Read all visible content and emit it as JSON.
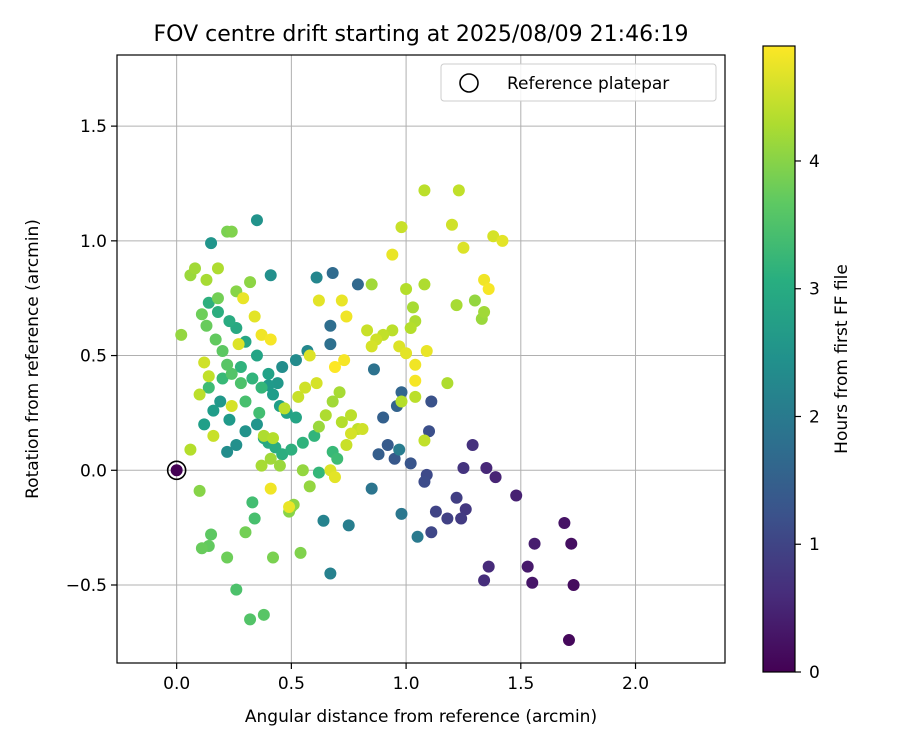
{
  "chart_data": {
    "type": "scatter",
    "title": "FOV centre drift starting at 2025/08/09 21:46:19",
    "xlabel": "Angular distance from reference (arcmin)",
    "ylabel": "Rotation from reference (arcmin)",
    "xlim": [
      -0.26,
      2.39
    ],
    "ylim": [
      -0.84,
      1.81
    ],
    "xticks": [
      0.0,
      0.5,
      1.0,
      1.5,
      2.0
    ],
    "xtick_labels": [
      "0.0",
      "0.5",
      "1.0",
      "1.5",
      "2.0"
    ],
    "yticks": [
      -0.5,
      0.0,
      0.5,
      1.0,
      1.5
    ],
    "ytick_labels": [
      "−0.5",
      "0.0",
      "0.5",
      "1.0",
      "1.5"
    ],
    "grid": true,
    "legend": {
      "location": "upper right",
      "entries": [
        "Reference platepar"
      ]
    },
    "reference_point": {
      "name": "Reference platepar",
      "x": 0.0,
      "y": 0.0
    },
    "colorbar": {
      "label": "Hours from first FF file",
      "colormap": "viridis",
      "range": [
        0,
        4.9
      ],
      "ticks": [
        0,
        1,
        2,
        3,
        4
      ],
      "tick_labels": [
        "0",
        "1",
        "2",
        "3",
        "4"
      ]
    },
    "series": [
      {
        "points": [
          [
            1.71,
            -0.74,
            0.1
          ],
          [
            1.73,
            -0.5,
            0.15
          ],
          [
            1.72,
            -0.32,
            0.2
          ],
          [
            1.69,
            -0.23,
            0.25
          ],
          [
            1.55,
            -0.49,
            0.3
          ],
          [
            1.53,
            -0.42,
            0.35
          ],
          [
            1.56,
            -0.32,
            0.4
          ],
          [
            1.48,
            -0.11,
            0.45
          ],
          [
            1.39,
            -0.03,
            0.5
          ],
          [
            1.35,
            0.01,
            0.55
          ],
          [
            1.36,
            -0.42,
            0.6
          ],
          [
            1.34,
            -0.48,
            0.65
          ],
          [
            1.29,
            0.11,
            0.7
          ],
          [
            1.25,
            0.01,
            0.75
          ],
          [
            1.26,
            -0.17,
            0.8
          ],
          [
            1.24,
            -0.21,
            0.85
          ],
          [
            1.22,
            -0.12,
            0.9
          ],
          [
            1.18,
            -0.21,
            0.95
          ],
          [
            1.13,
            -0.18,
            1.0
          ],
          [
            1.11,
            -0.27,
            1.05
          ],
          [
            1.09,
            -0.02,
            1.1
          ],
          [
            1.08,
            -0.05,
            1.15
          ],
          [
            1.1,
            0.17,
            1.2
          ],
          [
            1.11,
            0.3,
            1.25
          ],
          [
            1.02,
            0.03,
            1.3
          ],
          [
            0.95,
            0.05,
            1.35
          ],
          [
            0.92,
            0.11,
            1.4
          ],
          [
            0.88,
            0.07,
            1.45
          ],
          [
            0.9,
            0.23,
            1.5
          ],
          [
            0.96,
            0.28,
            1.55
          ],
          [
            0.98,
            0.34,
            1.6
          ],
          [
            0.79,
            0.81,
            1.65
          ],
          [
            0.68,
            0.86,
            1.7
          ],
          [
            0.67,
            0.63,
            1.75
          ],
          [
            0.67,
            0.55,
            1.8
          ],
          [
            0.86,
            0.44,
            1.85
          ],
          [
            0.85,
            -0.08,
            1.9
          ],
          [
            0.98,
            -0.19,
            1.95
          ],
          [
            1.05,
            -0.29,
            2.0
          ],
          [
            0.97,
            0.09,
            2.05
          ],
          [
            0.75,
            -0.24,
            2.1
          ],
          [
            0.67,
            -0.45,
            2.15
          ],
          [
            0.64,
            -0.22,
            2.2
          ],
          [
            0.61,
            0.84,
            2.25
          ],
          [
            0.57,
            0.52,
            2.3
          ],
          [
            0.52,
            0.48,
            2.35
          ],
          [
            0.46,
            0.45,
            2.4
          ],
          [
            0.41,
            0.85,
            2.45
          ],
          [
            0.35,
            1.09,
            2.5
          ],
          [
            0.15,
            0.99,
            2.55
          ],
          [
            0.44,
            0.38,
            2.6
          ],
          [
            0.4,
            0.37,
            2.65
          ],
          [
            0.42,
            0.33,
            2.7
          ],
          [
            0.45,
            0.28,
            2.75
          ],
          [
            0.48,
            0.25,
            2.8
          ],
          [
            0.52,
            0.23,
            2.85
          ],
          [
            0.38,
            0.14,
            2.9
          ],
          [
            0.4,
            0.12,
            2.95
          ],
          [
            0.43,
            0.1,
            3.0
          ],
          [
            0.46,
            0.07,
            3.05
          ],
          [
            0.5,
            0.09,
            3.1
          ],
          [
            0.55,
            0.12,
            3.15
          ],
          [
            0.6,
            0.15,
            3.2
          ],
          [
            0.62,
            -0.01,
            3.25
          ],
          [
            0.68,
            0.08,
            3.3
          ],
          [
            0.7,
            0.05,
            3.35
          ],
          [
            0.36,
            0.25,
            3.4
          ],
          [
            0.3,
            0.3,
            3.45
          ],
          [
            0.28,
            0.38,
            3.5
          ],
          [
            0.24,
            0.42,
            3.55
          ],
          [
            0.22,
            0.46,
            3.6
          ],
          [
            0.2,
            0.52,
            3.65
          ],
          [
            0.17,
            0.57,
            3.7
          ],
          [
            0.13,
            0.63,
            3.75
          ],
          [
            0.11,
            0.68,
            3.8
          ],
          [
            0.18,
            0.75,
            3.85
          ],
          [
            0.22,
            1.04,
            3.9
          ],
          [
            0.24,
            1.04,
            3.95
          ],
          [
            0.26,
            0.78,
            4.0
          ],
          [
            0.32,
            0.82,
            4.05
          ],
          [
            0.02,
            0.59,
            4.1
          ],
          [
            0.06,
            0.85,
            4.15
          ],
          [
            0.08,
            0.88,
            4.2
          ],
          [
            0.13,
            0.83,
            4.25
          ],
          [
            0.18,
            0.88,
            4.3
          ],
          [
            0.06,
            0.09,
            4.35
          ],
          [
            0.1,
            0.33,
            4.4
          ],
          [
            0.14,
            0.41,
            4.45
          ],
          [
            0.16,
            0.15,
            4.5
          ],
          [
            0.12,
            0.47,
            4.55
          ],
          [
            0.24,
            0.28,
            4.6
          ],
          [
            0.27,
            0.55,
            4.65
          ],
          [
            0.34,
            0.67,
            4.7
          ],
          [
            0.29,
            0.75,
            4.75
          ],
          [
            0.37,
            0.59,
            4.8
          ],
          [
            0.41,
            0.57,
            4.85
          ]
        ]
      },
      {
        "points": [
          [
            0.22,
            0.08,
            2.4
          ],
          [
            0.26,
            0.11,
            2.45
          ],
          [
            0.3,
            0.17,
            2.5
          ],
          [
            0.35,
            0.2,
            2.55
          ],
          [
            0.19,
            0.3,
            2.6
          ],
          [
            0.23,
            0.22,
            2.65
          ],
          [
            0.16,
            0.26,
            2.7
          ],
          [
            0.12,
            0.2,
            2.75
          ],
          [
            0.4,
            0.42,
            2.8
          ],
          [
            0.35,
            0.5,
            2.85
          ],
          [
            0.3,
            0.56,
            2.9
          ],
          [
            0.26,
            0.62,
            2.95
          ],
          [
            0.23,
            0.65,
            3.0
          ],
          [
            0.18,
            0.69,
            3.05
          ],
          [
            0.14,
            0.73,
            3.1
          ],
          [
            0.28,
            0.45,
            3.15
          ],
          [
            0.33,
            0.4,
            3.2
          ],
          [
            0.37,
            0.36,
            3.25
          ],
          [
            0.2,
            0.4,
            3.3
          ],
          [
            0.14,
            0.36,
            3.35
          ],
          [
            0.33,
            -0.14,
            3.4
          ],
          [
            0.34,
            -0.21,
            3.45
          ],
          [
            0.26,
            -0.52,
            3.5
          ],
          [
            0.32,
            -0.65,
            3.55
          ],
          [
            0.38,
            -0.63,
            3.6
          ],
          [
            0.15,
            -0.28,
            3.65
          ],
          [
            0.14,
            -0.33,
            3.7
          ],
          [
            0.11,
            -0.34,
            3.75
          ],
          [
            0.22,
            -0.38,
            3.8
          ],
          [
            0.3,
            -0.27,
            3.85
          ],
          [
            0.42,
            -0.38,
            3.9
          ],
          [
            0.54,
            -0.36,
            3.95
          ],
          [
            0.49,
            -0.18,
            4.0
          ],
          [
            0.5,
            -0.16,
            4.05
          ],
          [
            0.58,
            -0.07,
            4.1
          ],
          [
            0.62,
            0.19,
            4.15
          ],
          [
            0.68,
            0.3,
            4.2
          ],
          [
            0.71,
            0.34,
            4.25
          ],
          [
            0.65,
            0.24,
            4.3
          ],
          [
            0.72,
            0.21,
            4.35
          ],
          [
            0.76,
            0.24,
            4.4
          ],
          [
            0.79,
            0.18,
            4.45
          ],
          [
            0.53,
            0.32,
            4.5
          ],
          [
            0.56,
            0.36,
            4.55
          ],
          [
            0.61,
            0.38,
            4.6
          ],
          [
            0.58,
            0.5,
            4.65
          ],
          [
            0.62,
            0.74,
            4.7
          ],
          [
            0.72,
            0.74,
            4.75
          ],
          [
            0.74,
            0.67,
            4.8
          ],
          [
            0.73,
            0.48,
            4.85
          ],
          [
            0.69,
            0.45,
            4.9
          ],
          [
            0.1,
            -0.09,
            4.0
          ],
          [
            0.51,
            -0.15,
            4.05
          ],
          [
            0.55,
            0.0,
            4.1
          ],
          [
            0.45,
            0.02,
            4.15
          ],
          [
            0.41,
            0.05,
            4.2
          ],
          [
            0.37,
            0.02,
            4.25
          ],
          [
            0.38,
            0.15,
            4.3
          ],
          [
            0.42,
            0.14,
            4.35
          ],
          [
            0.47,
            0.27,
            4.4
          ]
        ]
      },
      {
        "points": [
          [
            1.08,
            1.22,
            4.4
          ],
          [
            1.23,
            1.22,
            4.45
          ],
          [
            0.98,
            1.06,
            4.5
          ],
          [
            1.2,
            1.07,
            4.55
          ],
          [
            1.38,
            1.02,
            4.6
          ],
          [
            1.25,
            0.97,
            4.65
          ],
          [
            1.42,
            1.0,
            4.7
          ],
          [
            0.94,
            0.94,
            4.75
          ],
          [
            1.34,
            0.83,
            4.8
          ],
          [
            1.36,
            0.79,
            4.85
          ],
          [
            1.08,
            0.81,
            4.3
          ],
          [
            1.0,
            0.79,
            4.35
          ],
          [
            0.85,
            0.81,
            4.2
          ],
          [
            1.22,
            0.72,
            4.25
          ],
          [
            1.3,
            0.74,
            4.1
          ],
          [
            1.33,
            0.66,
            4.15
          ],
          [
            1.34,
            0.69,
            4.2
          ],
          [
            1.03,
            0.71,
            4.25
          ],
          [
            1.04,
            0.65,
            4.3
          ],
          [
            1.02,
            0.62,
            4.35
          ],
          [
            0.94,
            0.61,
            4.4
          ],
          [
            0.9,
            0.59,
            4.45
          ],
          [
            0.83,
            0.61,
            4.5
          ],
          [
            0.87,
            0.57,
            4.55
          ],
          [
            0.85,
            0.54,
            4.6
          ],
          [
            0.97,
            0.54,
            4.65
          ],
          [
            1.0,
            0.51,
            4.7
          ],
          [
            1.09,
            0.52,
            4.75
          ],
          [
            1.04,
            0.46,
            4.8
          ],
          [
            1.04,
            0.39,
            4.85
          ],
          [
            1.18,
            0.38,
            4.3
          ],
          [
            0.98,
            0.3,
            4.35
          ],
          [
            1.04,
            0.32,
            4.4
          ],
          [
            1.08,
            0.13,
            4.45
          ],
          [
            0.74,
            0.11,
            4.5
          ],
          [
            0.81,
            0.18,
            4.55
          ],
          [
            0.76,
            0.16,
            4.6
          ],
          [
            0.67,
            0.0,
            4.65
          ],
          [
            0.69,
            -0.03,
            4.7
          ],
          [
            0.49,
            -0.16,
            4.75
          ],
          [
            0.41,
            -0.08,
            4.8
          ]
        ]
      }
    ]
  }
}
